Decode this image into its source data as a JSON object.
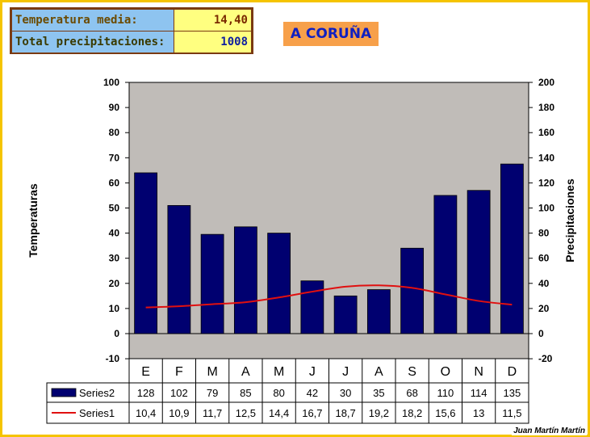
{
  "info": {
    "temp_label": "Temperatura media:",
    "temp_value": "14,40",
    "precip_label": "Total precipitaciones:",
    "precip_value": "1008"
  },
  "title": "A CORUÑA",
  "credit": "Juan Martín Martín",
  "colors": {
    "bars": "#000070",
    "line": "#e01010",
    "plot_bg": "#c0bcb8",
    "frame": "#f5c400"
  },
  "chart_data": {
    "type": "bar",
    "title": "A CORUÑA",
    "categories": [
      "E",
      "F",
      "M",
      "A",
      "M",
      "J",
      "J",
      "A",
      "S",
      "O",
      "N",
      "D"
    ],
    "series": [
      {
        "name": "Series2",
        "type": "bar",
        "axis": "right",
        "values": [
          128,
          102,
          79,
          85,
          80,
          42,
          30,
          35,
          68,
          110,
          114,
          135
        ],
        "labels": [
          "128",
          "102",
          "79",
          "85",
          "80",
          "42",
          "30",
          "35",
          "68",
          "110",
          "114",
          "135"
        ]
      },
      {
        "name": "Series1",
        "type": "line",
        "axis": "left",
        "values": [
          10.4,
          10.9,
          11.7,
          12.5,
          14.4,
          16.7,
          18.7,
          19.2,
          18.2,
          15.6,
          13,
          11.5
        ],
        "labels": [
          "10,4",
          "10,9",
          "11,7",
          "12,5",
          "14,4",
          "16,7",
          "18,7",
          "19,2",
          "18,2",
          "15,6",
          "13",
          "11,5"
        ]
      }
    ],
    "ylabel": "Temperaturas",
    "y2label": "Precipitaciones",
    "ylim": [
      -10,
      100
    ],
    "y2lim": [
      -20,
      200
    ],
    "yticks": [
      -10,
      0,
      10,
      20,
      30,
      40,
      50,
      60,
      70,
      80,
      90,
      100
    ],
    "y2ticks": [
      -20,
      0,
      20,
      40,
      60,
      80,
      100,
      120,
      140,
      160,
      180,
      200
    ],
    "grid": false,
    "legend": "data-table"
  }
}
